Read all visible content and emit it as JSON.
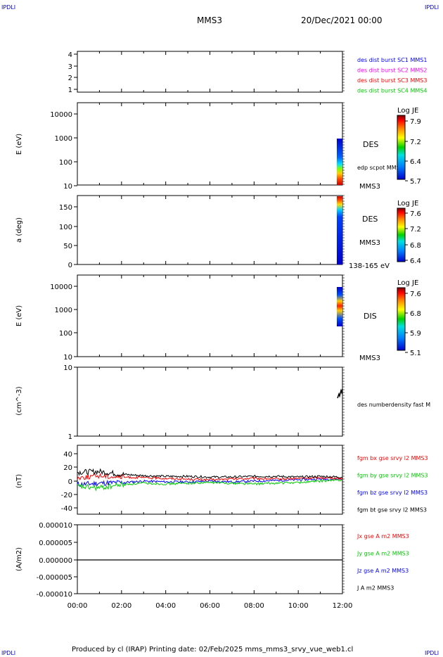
{
  "corner_tl": "IPDLI",
  "corner_tr": "IPDLI",
  "corner_bl": "IPDLI",
  "corner_br": "IPDLI",
  "header": {
    "title": "MMS3",
    "date": "20/Dec/2021 00:00"
  },
  "footer": "Produced by cl (IRAP)   Printing date: 02/Feb/2025   mms_mms3_srvy_vue_web1.cl",
  "x_ticks": [
    "00:00",
    "02:00",
    "04:00",
    "06:00",
    "08:00",
    "10:00",
    "12:00"
  ],
  "panels": {
    "p1": {
      "yticks": [
        "4",
        "3",
        "2",
        "1"
      ],
      "legend": [
        {
          "text": "des dist burst SC1 MMS1",
          "color": "#0000ff"
        },
        {
          "text": "des dist burst SC2 MMS2",
          "color": "#ff00ff"
        },
        {
          "text": "des dist burst SC3 MMS3",
          "color": "#ff0000"
        },
        {
          "text": "des dist burst SC4 MMS4",
          "color": "#00cc00"
        }
      ]
    },
    "p2": {
      "ylabel": "E (eV)",
      "yticks": [
        "10000",
        "1000",
        "100",
        "10"
      ],
      "side_label": "DES",
      "side_label2": "edp scpot MMS3",
      "bottom_label": "MMS3",
      "cbar": {
        "title": "Log JE",
        "ticks": [
          "7.9",
          "7.2",
          "6.4",
          "5.7"
        ]
      }
    },
    "p3": {
      "ylabel": "a (deg)",
      "yticks": [
        "150",
        "100",
        "50",
        "0"
      ],
      "side_label": "DES",
      "side_label2": "MMS3",
      "bottom_label": "138-165 eV",
      "cbar": {
        "title": "Log JE",
        "ticks": [
          "7.6",
          "7.2",
          "6.8",
          "6.4"
        ]
      }
    },
    "p4": {
      "ylabel": "E (eV)",
      "yticks": [
        "10000",
        "1000",
        "100",
        "10"
      ],
      "side_label": "DIS",
      "bottom_label": "MMS3",
      "cbar": {
        "title": "Log JE",
        "ticks": [
          "7.6",
          "6.8",
          "5.9",
          "5.1"
        ]
      }
    },
    "p5": {
      "ylabel": "(cm^-3)",
      "yticks": [
        "10",
        "1"
      ],
      "side_label": "des numberdensity fast M"
    },
    "p6": {
      "ylabel": "(nT)",
      "yticks": [
        "40",
        "20",
        "0",
        "-20",
        "-40"
      ],
      "legend": [
        {
          "text": "fgm bx gse srvy l2 MMS3",
          "color": "#ff0000"
        },
        {
          "text": "fgm by gse srvy l2 MMS3",
          "color": "#00cc00"
        },
        {
          "text": "fgm bz gse srvy l2 MMS3",
          "color": "#0000ff"
        },
        {
          "text": "fgm bt gse srvy l2 MMS3",
          "color": "#000000"
        }
      ]
    },
    "p7": {
      "ylabel": "(A/m2)",
      "yticks": [
        "0.000010",
        "0.000005",
        "0.000000",
        "-0.000005",
        "-0.000010"
      ],
      "legend": [
        {
          "text": "Jx gse A m2 MMS3",
          "color": "#ff0000"
        },
        {
          "text": "Jy gse A m2 MMS3",
          "color": "#00cc00"
        },
        {
          "text": "Jz gse A m2 MMS3",
          "color": "#0000ff"
        },
        {
          "text": "J A m2 MMS3",
          "color": "#000000"
        }
      ]
    }
  },
  "chart_data": {
    "type": "line",
    "x_range_hours": [
      0,
      12
    ],
    "magnetic_field_nT": {
      "ylim": [
        -50,
        50
      ],
      "series": [
        {
          "name": "fgm bt gse srvy l2 MMS3",
          "color": "#000000",
          "x": [
            0,
            1,
            2,
            3,
            4,
            5,
            6,
            7,
            8,
            9,
            10,
            11,
            12
          ],
          "values": [
            13,
            14,
            10,
            8,
            7,
            7,
            6,
            6,
            7,
            7,
            6,
            7,
            6
          ]
        },
        {
          "name": "fgm bx gse srvy l2 MMS3",
          "color": "#ff0000",
          "x": [
            0,
            1,
            2,
            3,
            4,
            5,
            6,
            7,
            8,
            9,
            10,
            11,
            12
          ],
          "values": [
            5,
            8,
            6,
            5,
            4,
            3,
            2,
            3,
            4,
            3,
            4,
            5,
            4
          ]
        },
        {
          "name": "fgm by gse srvy l2 MMS3",
          "color": "#00cc00",
          "x": [
            0,
            1,
            2,
            3,
            4,
            5,
            6,
            7,
            8,
            9,
            10,
            11,
            12
          ],
          "values": [
            -8,
            -10,
            -5,
            -3,
            -4,
            -3,
            -2,
            -3,
            -4,
            -3,
            -2,
            0,
            2
          ]
        },
        {
          "name": "fgm bz gse srvy l2 MMS3",
          "color": "#0000ff",
          "x": [
            0,
            1,
            2,
            3,
            4,
            5,
            6,
            7,
            8,
            9,
            10,
            11,
            12
          ],
          "values": [
            -5,
            -3,
            -2,
            0,
            -1,
            -1,
            0,
            -1,
            0,
            1,
            2,
            3,
            3
          ]
        }
      ]
    },
    "current_density": {
      "ylim": [
        -1e-05,
        1e-05
      ],
      "values_near": 0.0
    }
  }
}
